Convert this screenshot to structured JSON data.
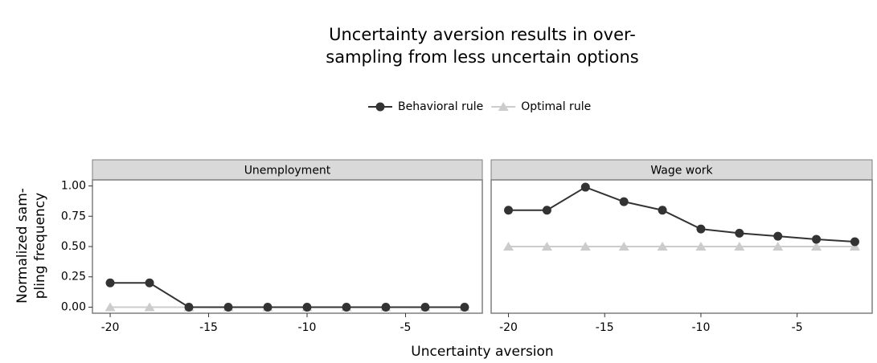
{
  "chart_data": {
    "type": "line",
    "title": [
      "Uncertainty aversion results in over-",
      "sampling from less uncertain options"
    ],
    "x_label": "Uncertainty aversion",
    "y_label": [
      "Normalized sam-",
      "pling frequency"
    ],
    "xlim": [
      -20.9,
      -1.1
    ],
    "xticks": [
      -20,
      -15,
      -10,
      -5
    ],
    "ylim": [
      -0.05,
      1.05
    ],
    "yticks": [
      {
        "value": 0,
        "label": "0.00"
      },
      {
        "value": 0.25,
        "label": "0.25"
      },
      {
        "value": 0.5,
        "label": "0.50"
      },
      {
        "value": 0.75,
        "label": "0.75"
      },
      {
        "value": 1,
        "label": "1.00"
      }
    ],
    "x": [
      -20,
      -18,
      -16,
      -14,
      -12,
      -10,
      -8,
      -6,
      -4,
      -2
    ],
    "legend": "top",
    "panels": [
      {
        "title": "Unemployment",
        "series": [
          {
            "name": "Behavioral rule",
            "color": "#333333",
            "marker": "circle",
            "values": [
              0.2,
              0.2,
              0,
              0,
              0,
              0,
              0,
              0,
              0,
              0
            ]
          },
          {
            "name": "Optimal rule",
            "color": "#cccccc",
            "marker": "triangle",
            "values": [
              0,
              0,
              0,
              0,
              0,
              0,
              0,
              0,
              0,
              0
            ]
          }
        ]
      },
      {
        "title": "Wage work",
        "series": [
          {
            "name": "Behavioral rule",
            "color": "#333333",
            "marker": "circle",
            "values": [
              0.8,
              0.8,
              0.99,
              0.87,
              0.8,
              0.645,
              0.61,
              0.585,
              0.56,
              0.54
            ]
          },
          {
            "name": "Optimal rule",
            "color": "#cccccc",
            "marker": "triangle",
            "values": [
              0.5,
              0.5,
              0.5,
              0.5,
              0.5,
              0.5,
              0.5,
              0.5,
              0.5,
              0.5
            ]
          }
        ]
      }
    ]
  }
}
